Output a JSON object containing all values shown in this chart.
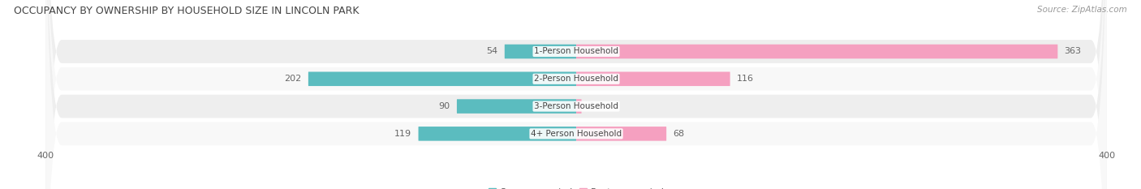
{
  "title": "OCCUPANCY BY OWNERSHIP BY HOUSEHOLD SIZE IN LINCOLN PARK",
  "source": "Source: ZipAtlas.com",
  "categories": [
    "1-Person Household",
    "2-Person Household",
    "3-Person Household",
    "4+ Person Household"
  ],
  "owner_values": [
    54,
    202,
    90,
    119
  ],
  "renter_values": [
    363,
    116,
    4,
    68
  ],
  "owner_color": "#5bbcbf",
  "renter_color": "#f5a0c0",
  "axis_limit": 400,
  "label_color": "#666666",
  "title_fontsize": 9,
  "source_fontsize": 7.5,
  "tick_fontsize": 8,
  "bar_label_fontsize": 8,
  "legend_fontsize": 8,
  "category_fontsize": 7.5,
  "bar_height": 0.52,
  "row_bg_color_odd": "#eeeeee",
  "row_bg_color_even": "#f8f8f8"
}
